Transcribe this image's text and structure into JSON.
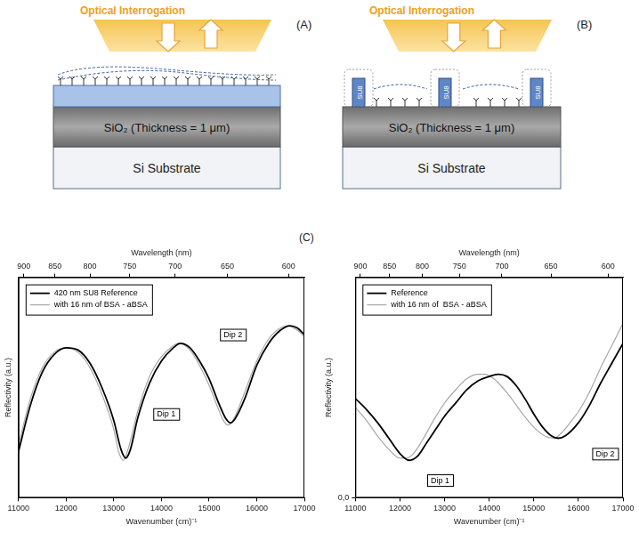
{
  "diagrams": [
    {
      "label": "(A)",
      "beam": "Optical Interrogation",
      "layers": [
        "SiO₂ (Thickness = 1 μm)",
        "Si Substrate"
      ]
    },
    {
      "label": "(B)",
      "beam": "Optical Interrogation",
      "pillar": "SU8",
      "layers": [
        "SiO₂ (Thickness = 1 μm)",
        "Si Substrate"
      ]
    }
  ],
  "panel_label": "(C)",
  "chart_data": [
    {
      "type": "line",
      "x_label": "Wavenumber (cm)⁻¹",
      "x2_label": "Wavelength (nm)",
      "y_label": "Reflectivity (a.u.)",
      "xlim": [
        11000,
        17000
      ],
      "xticks": [
        11000,
        12000,
        13000,
        14000,
        15000,
        16000,
        17000
      ],
      "x2lim": [
        909.1,
        588.24
      ],
      "x2ticks": [
        900,
        850,
        800,
        750,
        700,
        650,
        600
      ],
      "ylim": [
        0,
        1
      ],
      "tick_labels": "x",
      "grid": false,
      "legend": "upper left",
      "series": [
        {
          "name": "420 nm SU8 Reference",
          "color": "#000000",
          "x": [
            11000,
            11250,
            11500,
            11750,
            12000,
            12250,
            12500,
            12750,
            13000,
            13150,
            13250,
            13350,
            13500,
            13750,
            14000,
            14250,
            14400,
            14600,
            14800,
            15000,
            15200,
            15350,
            15450,
            15550,
            15750,
            16000,
            16250,
            16500,
            16700,
            16850,
            17000
          ],
          "values": [
            0.21,
            0.42,
            0.57,
            0.65,
            0.68,
            0.67,
            0.61,
            0.5,
            0.35,
            0.22,
            0.18,
            0.22,
            0.36,
            0.52,
            0.62,
            0.68,
            0.7,
            0.68,
            0.62,
            0.54,
            0.43,
            0.36,
            0.34,
            0.36,
            0.45,
            0.6,
            0.7,
            0.76,
            0.78,
            0.77,
            0.74
          ]
        },
        {
          "name": "with 16 nm of BSA - aBSA",
          "color": "#a8a8a8",
          "x": [
            11000,
            11250,
            11500,
            11750,
            12000,
            12250,
            12500,
            12750,
            13000,
            13100,
            13200,
            13300,
            13500,
            13750,
            14000,
            14250,
            14350,
            14600,
            14800,
            15000,
            15200,
            15300,
            15400,
            15500,
            15750,
            16000,
            16250,
            16500,
            16650,
            16850,
            17000
          ],
          "values": [
            0.24,
            0.45,
            0.59,
            0.66,
            0.68,
            0.66,
            0.59,
            0.47,
            0.31,
            0.21,
            0.17,
            0.22,
            0.39,
            0.55,
            0.64,
            0.69,
            0.7,
            0.67,
            0.6,
            0.51,
            0.4,
            0.35,
            0.33,
            0.35,
            0.48,
            0.62,
            0.72,
            0.77,
            0.78,
            0.76,
            0.73
          ]
        }
      ],
      "annotations": [
        {
          "text": "Dip 1",
          "x": 14100,
          "y": 0.38
        },
        {
          "text": "Dip 2",
          "x": 15500,
          "y": 0.74
        }
      ]
    },
    {
      "type": "line",
      "x_label": "Wavenumber (cm)⁻¹",
      "x2_label": "Wavelength (nm)",
      "y_label": "Reflectivity (a.u.)",
      "xlim": [
        11000,
        17000
      ],
      "xticks": [
        11000,
        12000,
        13000,
        14000,
        15000,
        16000,
        17000
      ],
      "x2lim": [
        909.1,
        588.24
      ],
      "x2ticks": [
        900,
        850,
        800,
        750,
        700,
        650,
        600
      ],
      "ylim": [
        0,
        1
      ],
      "yticks": [
        {
          "value": 0,
          "label": "0,0"
        }
      ],
      "grid": false,
      "legend": "upper left",
      "series": [
        {
          "name": "Reference",
          "color": "#000000",
          "x": [
            11000,
            11250,
            11500,
            11750,
            12000,
            12200,
            12400,
            12600,
            12800,
            13000,
            13250,
            13500,
            13750,
            14000,
            14200,
            14400,
            14600,
            14800,
            15000,
            15200,
            15400,
            15550,
            15700,
            16000,
            16250,
            16500,
            16750,
            17000
          ],
          "values": [
            0.45,
            0.4,
            0.34,
            0.27,
            0.2,
            0.17,
            0.19,
            0.25,
            0.31,
            0.37,
            0.43,
            0.49,
            0.53,
            0.55,
            0.56,
            0.55,
            0.51,
            0.45,
            0.38,
            0.32,
            0.28,
            0.27,
            0.28,
            0.34,
            0.42,
            0.52,
            0.61,
            0.7
          ]
        },
        {
          "name": "with 16 nm of  BSA - aBSA",
          "color": "#a8a8a8",
          "x": [
            11000,
            11250,
            11500,
            11750,
            12000,
            12150,
            12300,
            12500,
            12750,
            13000,
            13250,
            13500,
            13750,
            13900,
            14100,
            14300,
            14500,
            14750,
            15000,
            15250,
            15450,
            15650,
            15850,
            16000,
            16250,
            16500,
            16750,
            17000
          ],
          "values": [
            0.41,
            0.35,
            0.28,
            0.22,
            0.18,
            0.18,
            0.2,
            0.26,
            0.35,
            0.43,
            0.49,
            0.54,
            0.56,
            0.56,
            0.54,
            0.5,
            0.45,
            0.38,
            0.32,
            0.28,
            0.27,
            0.3,
            0.35,
            0.39,
            0.48,
            0.59,
            0.69,
            0.79
          ]
        }
      ],
      "annotations": [
        {
          "text": "Dip 1",
          "x": 12900,
          "y": 0.08
        },
        {
          "text": "Dip 2",
          "x": 16600,
          "y": 0.2
        }
      ]
    }
  ]
}
